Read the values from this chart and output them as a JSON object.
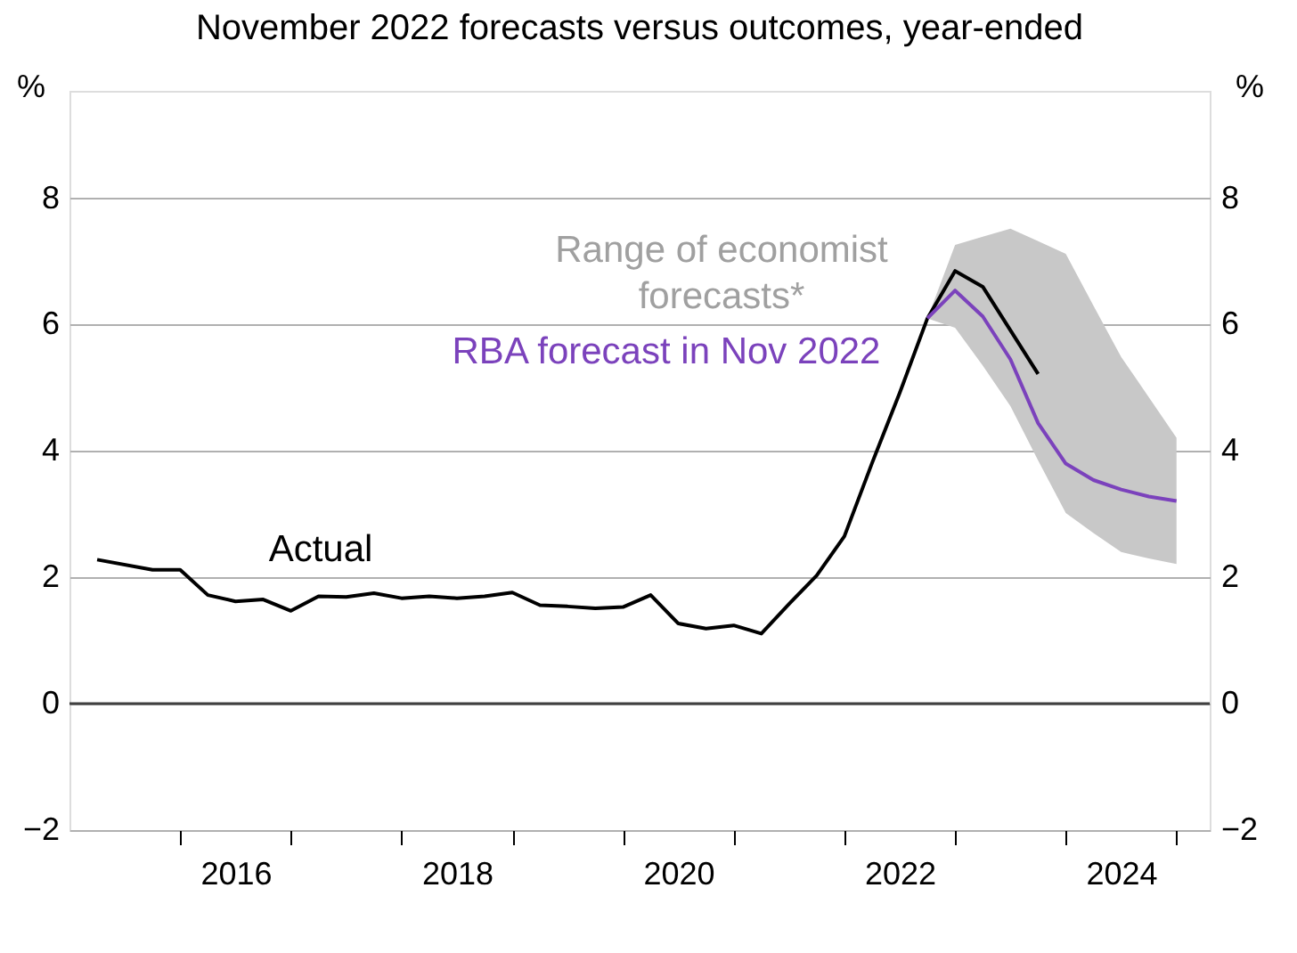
{
  "chart_data": {
    "type": "line",
    "title": "November 2022 forecasts versus outcomes, year-ended",
    "ylabel": "%",
    "y2label": "%",
    "xlim": [
      2015.0,
      2025.3
    ],
    "ylim": [
      -2,
      9.7
    ],
    "y2lim": [
      -2,
      9.7
    ],
    "xticks": [
      {
        "value": 2016,
        "label": null
      },
      {
        "value": 2017,
        "label": null
      },
      {
        "value": 2018,
        "label": null
      },
      {
        "value": 2019,
        "label": null
      },
      {
        "value": 2020,
        "label": null
      },
      {
        "value": 2021,
        "label": null
      },
      {
        "value": 2022,
        "label": null
      },
      {
        "value": 2023,
        "label": null
      },
      {
        "value": 2024,
        "label": null
      },
      {
        "value": 2025,
        "label": null
      },
      {
        "value": 2016.5,
        "label": "2016"
      },
      {
        "value": 2018.5,
        "label": "2018"
      },
      {
        "value": 2020.5,
        "label": "2020"
      },
      {
        "value": 2022.5,
        "label": "2022"
      },
      {
        "value": 2024.5,
        "label": "2024"
      }
    ],
    "yticks": [
      -2,
      0,
      2,
      4,
      6,
      8
    ],
    "y2ticks": [
      -2,
      0,
      2,
      4,
      6,
      8
    ],
    "grid": "y",
    "line_style": "solid",
    "ref_lines": [
      {
        "axis": "y",
        "value": 0,
        "color": "#404040"
      }
    ],
    "annotations": [
      "Range of economist\nforecasts*"
    ],
    "series": [
      {
        "name": "Actual",
        "color": "#000000",
        "x": [
          2015.25,
          2015.75,
          2016.0,
          2016.25,
          2016.5,
          2016.75,
          2017.0,
          2017.25,
          2017.5,
          2017.75,
          2018.0,
          2018.25,
          2018.5,
          2018.75,
          2019.0,
          2019.25,
          2019.5,
          2019.75,
          2020.0,
          2020.25,
          2020.5,
          2020.75,
          2021.0,
          2021.25,
          2021.5,
          2021.75,
          2022.0,
          2022.25,
          2022.5,
          2022.75,
          2023.0,
          2023.25,
          2023.75
        ],
        "values": [
          2.28,
          2.12,
          2.12,
          1.72,
          1.62,
          1.65,
          1.47,
          1.7,
          1.69,
          1.75,
          1.67,
          1.7,
          1.67,
          1.7,
          1.76,
          1.56,
          1.54,
          1.51,
          1.53,
          1.72,
          1.27,
          1.19,
          1.24,
          1.11,
          1.58,
          2.03,
          2.65,
          3.81,
          4.92,
          6.1,
          6.85,
          6.6,
          5.22
        ]
      },
      {
        "name": "RBA forecast in Nov 2022",
        "color": "#7b42bc",
        "x": [
          2022.75,
          2023.0,
          2023.25,
          2023.5,
          2023.75,
          2024.0,
          2024.25,
          2024.5,
          2024.75,
          2025.0
        ],
        "values": [
          6.1,
          6.54,
          6.13,
          5.45,
          4.44,
          3.8,
          3.54,
          3.39,
          3.28,
          3.21
        ],
        "lower": [
          6.1,
          5.95,
          5.35,
          4.71,
          3.85,
          3.02,
          2.7,
          2.4,
          2.3,
          2.21
        ],
        "upper": [
          6.1,
          7.26,
          7.39,
          7.52,
          7.32,
          7.12,
          6.3,
          5.49,
          4.85,
          4.21
        ]
      }
    ]
  }
}
